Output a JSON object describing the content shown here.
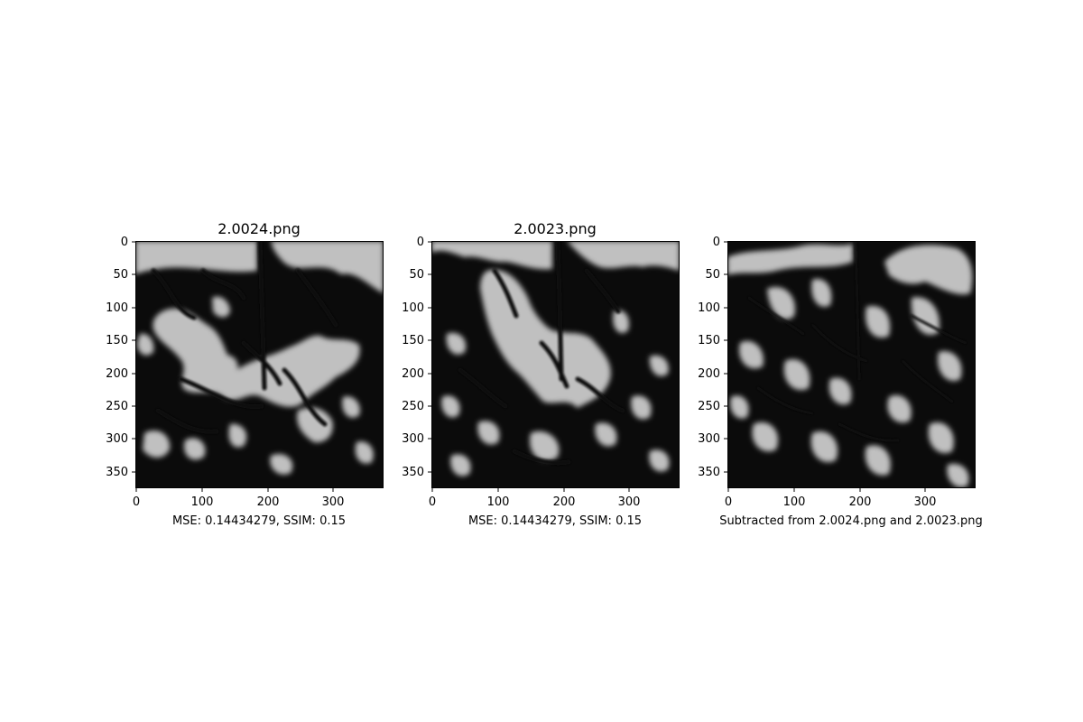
{
  "figure": {
    "panels": [
      {
        "title": "2.0024.png",
        "xlabel": "MSE: 0.14434279, SSIM: 0.15",
        "x_ticks": [
          "0",
          "100",
          "200",
          "300"
        ],
        "y_ticks": [
          "0",
          "50",
          "100",
          "150",
          "200",
          "250",
          "300",
          "350"
        ],
        "image_content": "grayscale-image"
      },
      {
        "title": "2.0023.png",
        "xlabel": "MSE: 0.14434279, SSIM: 0.15",
        "x_ticks": [
          "0",
          "100",
          "200",
          "300"
        ],
        "y_ticks": [
          "0",
          "50",
          "100",
          "150",
          "200",
          "250",
          "300",
          "350"
        ],
        "image_content": "grayscale-image"
      },
      {
        "title": "",
        "xlabel": "Subtracted from 2.0024.png and 2.0023.png",
        "x_ticks": [
          "0",
          "100",
          "200",
          "300"
        ],
        "y_ticks": [
          "0",
          "50",
          "100",
          "150",
          "200",
          "250",
          "300",
          "350"
        ],
        "image_content": "difference-image"
      }
    ],
    "colors": {
      "dark": "#0b0b0b",
      "light": "#c0c0c0"
    }
  }
}
